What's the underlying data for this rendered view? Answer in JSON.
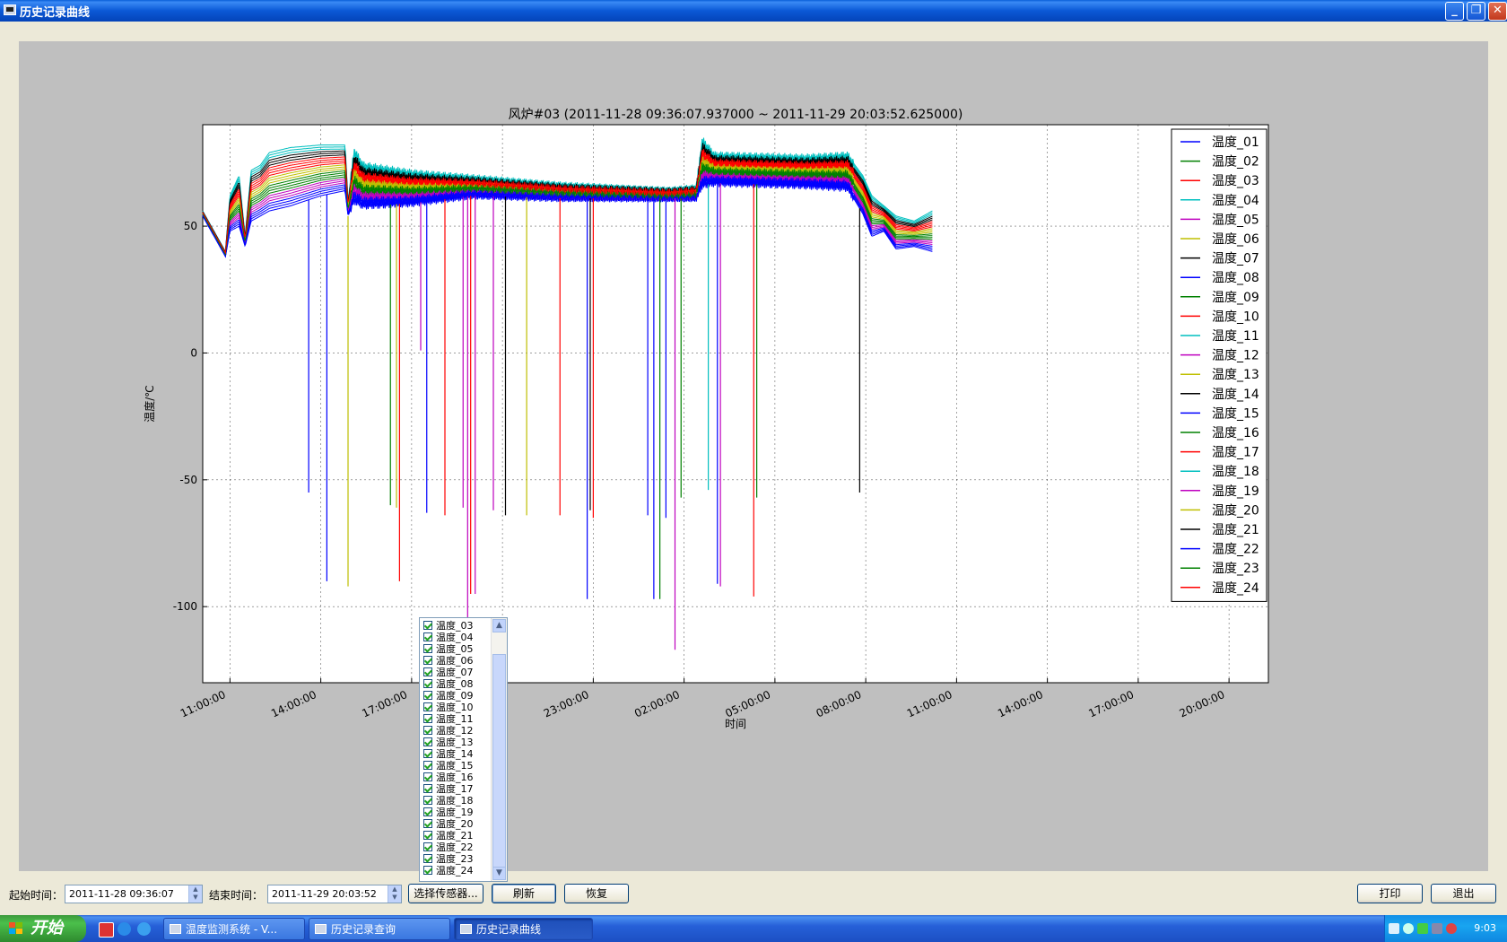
{
  "window": {
    "title": "历史记录曲线",
    "minimize": "_",
    "restore": "❐",
    "close": "✕"
  },
  "chart_data": {
    "type": "line",
    "title": "风炉#03 (2011-11-28 09:36:07.937000 ~ 2011-11-29 20:03:52.625000)",
    "xlabel": "时间",
    "ylabel": "温度/℃",
    "x_unit": "hours since 2011-11-28 00:00",
    "xlim": [
      10.1,
      45.3
    ],
    "ylim": [
      -130,
      90
    ],
    "xticks": [
      {
        "value": 11,
        "label": "11:00:00"
      },
      {
        "value": 14,
        "label": "14:00:00"
      },
      {
        "value": 17,
        "label": "17:00:00"
      },
      {
        "value": 20,
        "label": "20:00:00"
      },
      {
        "value": 23,
        "label": "23:00:00"
      },
      {
        "value": 26,
        "label": "02:00:00"
      },
      {
        "value": 29,
        "label": "05:00:00"
      },
      {
        "value": 32,
        "label": "08:00:00"
      },
      {
        "value": 35,
        "label": "11:00:00"
      },
      {
        "value": 38,
        "label": "14:00:00"
      },
      {
        "value": 41,
        "label": "17:00:00"
      },
      {
        "value": 44,
        "label": "20:00:00"
      }
    ],
    "yticks": [
      {
        "value": 50,
        "label": "50"
      },
      {
        "value": 0,
        "label": "0"
      },
      {
        "value": -50,
        "label": "-50"
      },
      {
        "value": -100,
        "label": "-100"
      }
    ],
    "grid": true,
    "legend_position": "top-right",
    "palette": [
      "#0000ff",
      "#008000",
      "#ff0000",
      "#00bfbf",
      "#bf00bf",
      "#bfbf00",
      "#000000"
    ],
    "series": [
      {
        "name": "温度_01"
      },
      {
        "name": "温度_02"
      },
      {
        "name": "温度_03"
      },
      {
        "name": "温度_04"
      },
      {
        "name": "温度_05"
      },
      {
        "name": "温度_06"
      },
      {
        "name": "温度_07"
      },
      {
        "name": "温度_08"
      },
      {
        "name": "温度_09"
      },
      {
        "name": "温度_10"
      },
      {
        "name": "温度_11"
      },
      {
        "name": "温度_12"
      },
      {
        "name": "温度_13"
      },
      {
        "name": "温度_14"
      },
      {
        "name": "温度_15"
      },
      {
        "name": "温度_16"
      },
      {
        "name": "温度_17"
      },
      {
        "name": "温度_18"
      },
      {
        "name": "温度_19"
      },
      {
        "name": "温度_20"
      },
      {
        "name": "温度_21"
      },
      {
        "name": "温度_22"
      },
      {
        "name": "温度_23"
      },
      {
        "name": "温度_24"
      }
    ],
    "band_keypoints": [
      {
        "x": 10.1,
        "low": 54,
        "high": 56
      },
      {
        "x": 10.85,
        "low": 38,
        "high": 40
      },
      {
        "x": 11.0,
        "low": 48,
        "high": 62
      },
      {
        "x": 11.3,
        "low": 50,
        "high": 70
      },
      {
        "x": 11.5,
        "low": 42,
        "high": 46
      },
      {
        "x": 11.7,
        "low": 52,
        "high": 72
      },
      {
        "x": 12.0,
        "low": 54,
        "high": 74
      },
      {
        "x": 12.3,
        "low": 56,
        "high": 79
      },
      {
        "x": 13.0,
        "low": 58,
        "high": 81
      },
      {
        "x": 14.0,
        "low": 62,
        "high": 82
      },
      {
        "x": 14.8,
        "low": 64,
        "high": 82
      },
      {
        "x": 14.9,
        "low": 54,
        "high": 60
      },
      {
        "x": 15.1,
        "low": 60,
        "high": 80
      },
      {
        "x": 15.4,
        "low": 58,
        "high": 74
      },
      {
        "x": 17.0,
        "low": 59,
        "high": 71
      },
      {
        "x": 19.0,
        "low": 62,
        "high": 69
      },
      {
        "x": 22.0,
        "low": 61,
        "high": 66
      },
      {
        "x": 25.5,
        "low": 61,
        "high": 64
      },
      {
        "x": 26.4,
        "low": 61,
        "high": 65
      },
      {
        "x": 26.6,
        "low": 66,
        "high": 84
      },
      {
        "x": 27.0,
        "low": 67,
        "high": 78
      },
      {
        "x": 30.0,
        "low": 66,
        "high": 77
      },
      {
        "x": 31.4,
        "low": 65,
        "high": 78
      },
      {
        "x": 31.9,
        "low": 55,
        "high": 70
      },
      {
        "x": 32.2,
        "low": 46,
        "high": 62
      },
      {
        "x": 32.6,
        "low": 48,
        "high": 58
      },
      {
        "x": 33.0,
        "low": 41,
        "high": 54
      },
      {
        "x": 33.6,
        "low": 42,
        "high": 52
      },
      {
        "x": 34.2,
        "low": 40,
        "high": 56
      }
    ],
    "spikes": [
      {
        "x": 13.6,
        "y": -55,
        "series": 0
      },
      {
        "x": 14.2,
        "y": -90,
        "series": 0
      },
      {
        "x": 14.9,
        "y": -92,
        "series": 5
      },
      {
        "x": 16.3,
        "y": -60,
        "series": 1
      },
      {
        "x": 16.5,
        "y": -61,
        "series": 5
      },
      {
        "x": 16.6,
        "y": -90,
        "series": 2
      },
      {
        "x": 17.3,
        "y": 1,
        "series": 4
      },
      {
        "x": 17.5,
        "y": -63,
        "series": 0
      },
      {
        "x": 18.1,
        "y": -64,
        "series": 2
      },
      {
        "x": 18.7,
        "y": -61,
        "series": 4
      },
      {
        "x": 18.85,
        "y": -125,
        "series": 4
      },
      {
        "x": 18.95,
        "y": -95,
        "series": 2
      },
      {
        "x": 19.1,
        "y": -95,
        "series": 4
      },
      {
        "x": 19.7,
        "y": -62,
        "series": 4
      },
      {
        "x": 20.1,
        "y": -64,
        "series": 6
      },
      {
        "x": 20.8,
        "y": -64,
        "series": 5
      },
      {
        "x": 21.9,
        "y": -64,
        "series": 2
      },
      {
        "x": 22.8,
        "y": -97,
        "series": 0
      },
      {
        "x": 22.9,
        "y": -62,
        "series": 6
      },
      {
        "x": 23.0,
        "y": -65,
        "series": 2
      },
      {
        "x": 24.8,
        "y": -64,
        "series": 0
      },
      {
        "x": 25.0,
        "y": -97,
        "series": 0
      },
      {
        "x": 25.2,
        "y": -97,
        "series": 1
      },
      {
        "x": 25.4,
        "y": -65,
        "series": 0
      },
      {
        "x": 25.7,
        "y": -117,
        "series": 4
      },
      {
        "x": 25.9,
        "y": -57,
        "series": 1
      },
      {
        "x": 26.8,
        "y": -54,
        "series": 3
      },
      {
        "x": 27.1,
        "y": -91,
        "series": 0
      },
      {
        "x": 27.2,
        "y": -92,
        "series": 4
      },
      {
        "x": 28.3,
        "y": -96,
        "series": 2
      },
      {
        "x": 28.4,
        "y": -57,
        "series": 1
      },
      {
        "x": 31.8,
        "y": -55,
        "series": 6
      }
    ]
  },
  "sensor_list": {
    "items": [
      "温度_03",
      "温度_04",
      "温度_05",
      "温度_06",
      "温度_07",
      "温度_08",
      "温度_09",
      "温度_10",
      "温度_11",
      "温度_12",
      "温度_13",
      "温度_14",
      "温度_15",
      "温度_16",
      "温度_17",
      "温度_18",
      "温度_19",
      "温度_20",
      "温度_21",
      "温度_22",
      "温度_23",
      "温度_24"
    ],
    "checked": true,
    "scroll_up": "▲",
    "scroll_down": "▼"
  },
  "toolbar": {
    "start_label": "起始时间：",
    "start_value": "2011-11-28 09:36:07",
    "end_label": "结束时间：",
    "end_value": "2011-11-29 20:03:52",
    "select_sensor": "选择传感器...",
    "refresh": "刷新",
    "restore": "恢复",
    "print": "打印",
    "exit": "退出"
  },
  "taskbar": {
    "start": "开始",
    "tasks": [
      {
        "label": "温度监测系统 - V..."
      },
      {
        "label": "历史记录查询"
      },
      {
        "label": "历史记录曲线"
      }
    ],
    "clock": "9:03"
  }
}
